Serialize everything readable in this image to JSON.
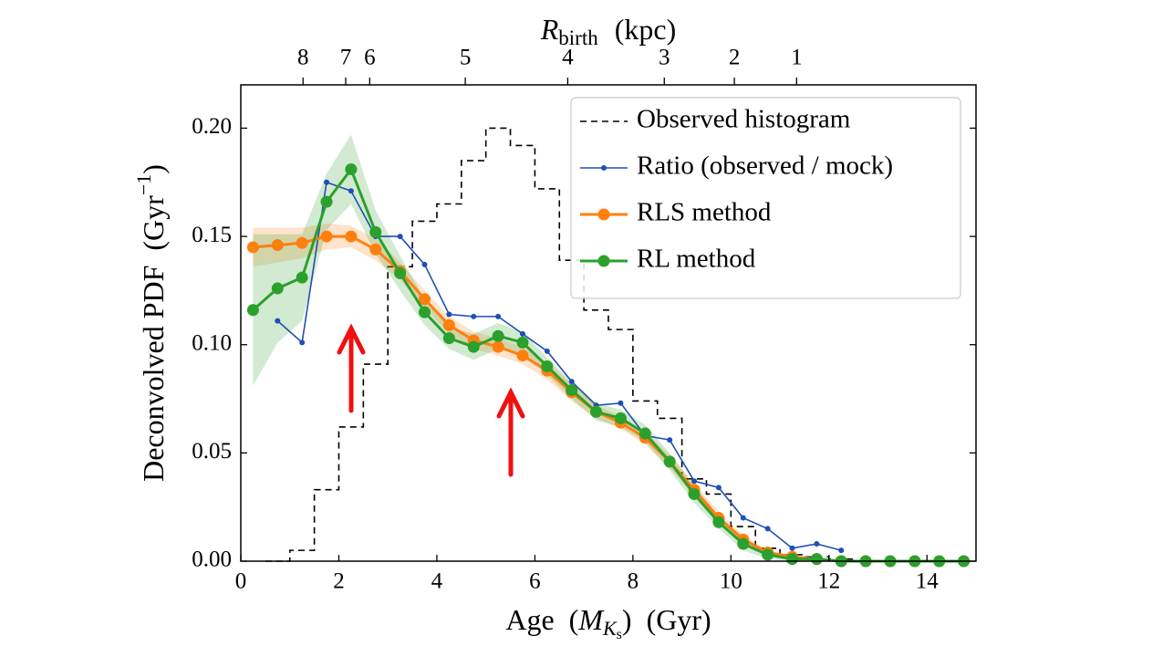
{
  "chart_data": {
    "type": "line",
    "x_label": {
      "prefix": "Age  (",
      "symbol": "M",
      "sub": "K",
      "subsub": "s",
      "suffix": ")  (Gyr)"
    },
    "y_label": {
      "text": "Deconvolved PDF  (Gyr",
      "sup": "−1",
      "close": ")"
    },
    "x2_label": {
      "symbol": "R",
      "sub": "birth",
      "unit": "(kpc)"
    },
    "xlim": [
      0,
      15
    ],
    "xticks": [
      0,
      2,
      4,
      6,
      8,
      10,
      12,
      14
    ],
    "ylim": [
      0,
      0.22
    ],
    "yticks": [
      {
        "value": 0,
        "label": "0.00"
      },
      0.05,
      {
        "value": 0.1,
        "label": "0.10"
      },
      0.15,
      {
        "value": 0.2,
        "label": "0.20"
      }
    ],
    "x2ticks": [
      {
        "value": 1.27,
        "label": "8"
      },
      {
        "value": 2.14,
        "label": "7"
      },
      {
        "value": 2.63,
        "label": "6"
      },
      {
        "value": 4.58,
        "label": "5"
      },
      {
        "value": 6.67,
        "label": "4"
      },
      {
        "value": 8.64,
        "label": "3"
      },
      {
        "value": 10.07,
        "label": "2"
      },
      {
        "value": 11.34,
        "label": "1"
      }
    ],
    "legend": "upper right",
    "series": [
      {
        "name": "Observed histogram",
        "style": "step",
        "color": "#000000",
        "bins": [
          0.5,
          1.0,
          1.5,
          2.0,
          2.5,
          3.0,
          3.5,
          4.0,
          4.5,
          5.0,
          5.5,
          6.0,
          6.5,
          7.0,
          7.5,
          8.0,
          8.5,
          9.0,
          9.5,
          10.0,
          10.5,
          11.0,
          11.5,
          12.0,
          12.5
        ],
        "values": [
          0.0,
          0.005,
          0.033,
          0.062,
          0.091,
          0.136,
          0.157,
          0.165,
          0.185,
          0.2,
          0.192,
          0.172,
          0.139,
          0.116,
          0.107,
          0.074,
          0.066,
          0.038,
          0.031,
          0.016,
          0.006,
          0.003,
          0.002,
          0.001
        ]
      },
      {
        "name": "Ratio (observed / mock)",
        "style": "line",
        "color": "#1f4fb4",
        "x": [
          0.75,
          1.25,
          1.75,
          2.25,
          2.75,
          3.25,
          3.75,
          4.25,
          4.75,
          5.25,
          5.75,
          6.25,
          6.75,
          7.25,
          7.75,
          8.25,
          8.75,
          9.25,
          9.75,
          10.25,
          10.75,
          11.25,
          11.75,
          12.25
        ],
        "values": [
          0.111,
          0.101,
          0.175,
          0.171,
          0.15,
          0.15,
          0.137,
          0.114,
          0.113,
          0.113,
          0.105,
          0.097,
          0.083,
          0.072,
          0.073,
          0.058,
          0.056,
          0.037,
          0.034,
          0.02,
          0.015,
          0.006,
          0.008,
          0.005
        ]
      },
      {
        "name": "RLS method",
        "style": "line",
        "color": "#ff7f0e",
        "x": [
          0.25,
          0.75,
          1.25,
          1.75,
          2.25,
          2.75,
          3.25,
          3.75,
          4.25,
          4.75,
          5.25,
          5.75,
          6.25,
          6.75,
          7.25,
          7.75,
          8.25,
          8.75,
          9.25,
          9.75,
          10.25,
          10.75,
          11.25,
          11.75,
          12.25,
          12.75,
          13.25,
          13.75,
          14.25,
          14.75
        ],
        "values": [
          0.145,
          0.146,
          0.147,
          0.15,
          0.15,
          0.144,
          0.134,
          0.121,
          0.109,
          0.102,
          0.099,
          0.095,
          0.088,
          0.078,
          0.069,
          0.064,
          0.057,
          0.046,
          0.033,
          0.02,
          0.01,
          0.004,
          0.002,
          0.001,
          0,
          0,
          0,
          0,
          0,
          0
        ],
        "errors": [
          0.009,
          0.008,
          0.007,
          0.006,
          0.005,
          0.005,
          0.004,
          0.004,
          0.004,
          0.004,
          0.004,
          0.004,
          0.004,
          0.004,
          0.003,
          0.003,
          0.003,
          0.003,
          0.003,
          0.003,
          0.002,
          0.001,
          0.001,
          0,
          0,
          0,
          0,
          0,
          0,
          0
        ]
      },
      {
        "name": "RL method",
        "style": "line",
        "color": "#2ca02c",
        "x": [
          0.25,
          0.75,
          1.25,
          1.75,
          2.25,
          2.75,
          3.25,
          3.75,
          4.25,
          4.75,
          5.25,
          5.75,
          6.25,
          6.75,
          7.25,
          7.75,
          8.25,
          8.75,
          9.25,
          9.75,
          10.25,
          10.75,
          11.25,
          11.75,
          12.25,
          12.75,
          13.25,
          13.75,
          14.25,
          14.75
        ],
        "values": [
          0.116,
          0.126,
          0.131,
          0.166,
          0.181,
          0.152,
          0.133,
          0.115,
          0.103,
          0.099,
          0.104,
          0.101,
          0.09,
          0.079,
          0.069,
          0.066,
          0.059,
          0.046,
          0.031,
          0.018,
          0.008,
          0.003,
          0.001,
          0.001,
          0,
          0,
          0,
          0,
          0,
          0
        ],
        "errors": [
          0.035,
          0.025,
          0.02,
          0.013,
          0.016,
          0.01,
          0.008,
          0.006,
          0.005,
          0.006,
          0.006,
          0.005,
          0.004,
          0.004,
          0.004,
          0.004,
          0.004,
          0.004,
          0.004,
          0.003,
          0.003,
          0.002,
          0.001,
          0.001,
          0,
          0,
          0,
          0,
          0,
          0
        ]
      }
    ]
  }
}
